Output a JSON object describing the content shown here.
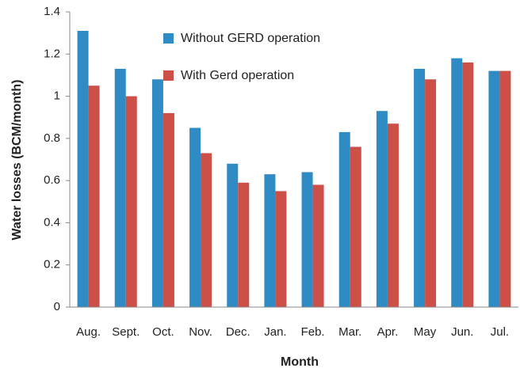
{
  "chart_data": {
    "type": "bar",
    "x_label": "Month",
    "y_label": "Water losses (BCM/month)",
    "categories": [
      "Aug.",
      "Sept.",
      "Oct.",
      "Nov.",
      "Dec.",
      "Jan.",
      "Feb.",
      "Mar.",
      "Apr.",
      "May",
      "Jun.",
      "Jul."
    ],
    "series": [
      {
        "name": "Without GERD operation",
        "color": "#2e8bc4",
        "values": [
          1.31,
          1.13,
          1.08,
          0.85,
          0.68,
          0.63,
          0.64,
          0.83,
          0.93,
          1.13,
          1.18,
          1.12
        ]
      },
      {
        "name": "With Gerd operation",
        "color": "#cc4f48",
        "values": [
          1.05,
          1.0,
          0.92,
          0.73,
          0.59,
          0.55,
          0.58,
          0.76,
          0.87,
          1.08,
          1.16,
          1.12
        ]
      }
    ],
    "ylim": [
      0,
      1.4
    ],
    "yticks": [
      0,
      0.2,
      0.4,
      0.6,
      0.8,
      1,
      1.2,
      1.4
    ],
    "grid": false,
    "legend": "top"
  }
}
